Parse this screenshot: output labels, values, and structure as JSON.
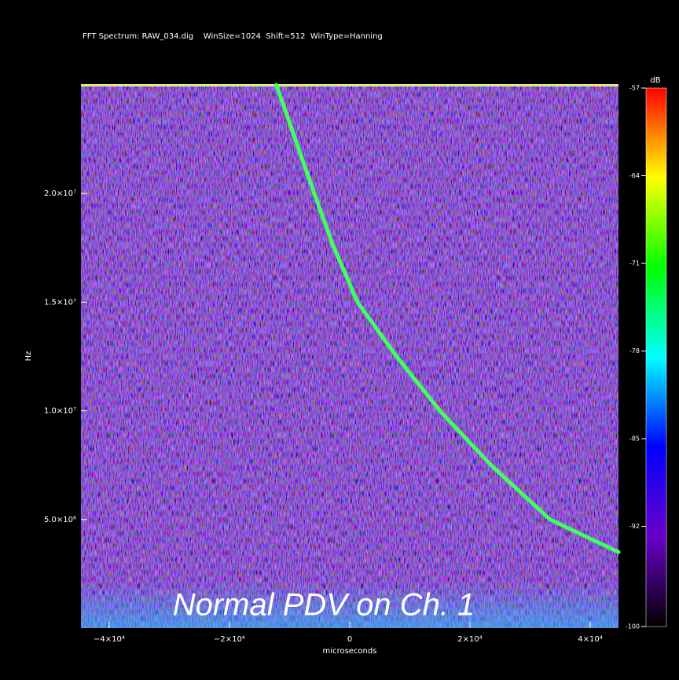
{
  "chart_data": {
    "type": "line",
    "title": "FFT Spectrum: RAW_034.dig    WinSize=1024  Shift=512  WinType=Hanning",
    "x_label": "microseconds",
    "y_label": "Hz",
    "annotation": "Normal PDV on Ch. 1",
    "x": [
      -12200,
      -5900,
      -2600,
      1300,
      7800,
      15000,
      23500,
      33300,
      44700
    ],
    "series": [
      {
        "color": "#40ff60",
        "values": [
          25000000,
          20000000,
          17500000,
          15000000,
          12500000,
          10000000,
          7500000,
          5000000,
          3500000
        ]
      }
    ],
    "xlim": [
      -44700,
      44700
    ],
    "xticks": [
      {
        "value": -40000,
        "label": "−4×10⁴"
      },
      {
        "value": -20000,
        "label": "−2×10⁴"
      },
      0,
      {
        "value": 20000,
        "label": "2×10⁴"
      },
      {
        "value": 40000,
        "label": "4×10⁴"
      }
    ],
    "ylim": [
      0,
      25000000
    ],
    "yticks": [
      {
        "value": 5000000,
        "label": "5.0×10⁶"
      },
      {
        "value": 10000000,
        "label": "1.0×10⁷"
      },
      {
        "value": 15000000,
        "label": "1.5×10⁷"
      },
      {
        "value": 20000000,
        "label": "2.0×10⁷"
      }
    ],
    "colorbar": {
      "label": "dB",
      "lim": [
        -100,
        -57
      ],
      "ticks": [
        -57,
        -64,
        -71,
        -78,
        -85,
        -92,
        -100
      ],
      "colormap": [
        "#000000",
        "#6a00c8",
        "#0000ff",
        "#00ffff",
        "#00ff00",
        "#ffff00",
        "#ff0000"
      ]
    }
  }
}
